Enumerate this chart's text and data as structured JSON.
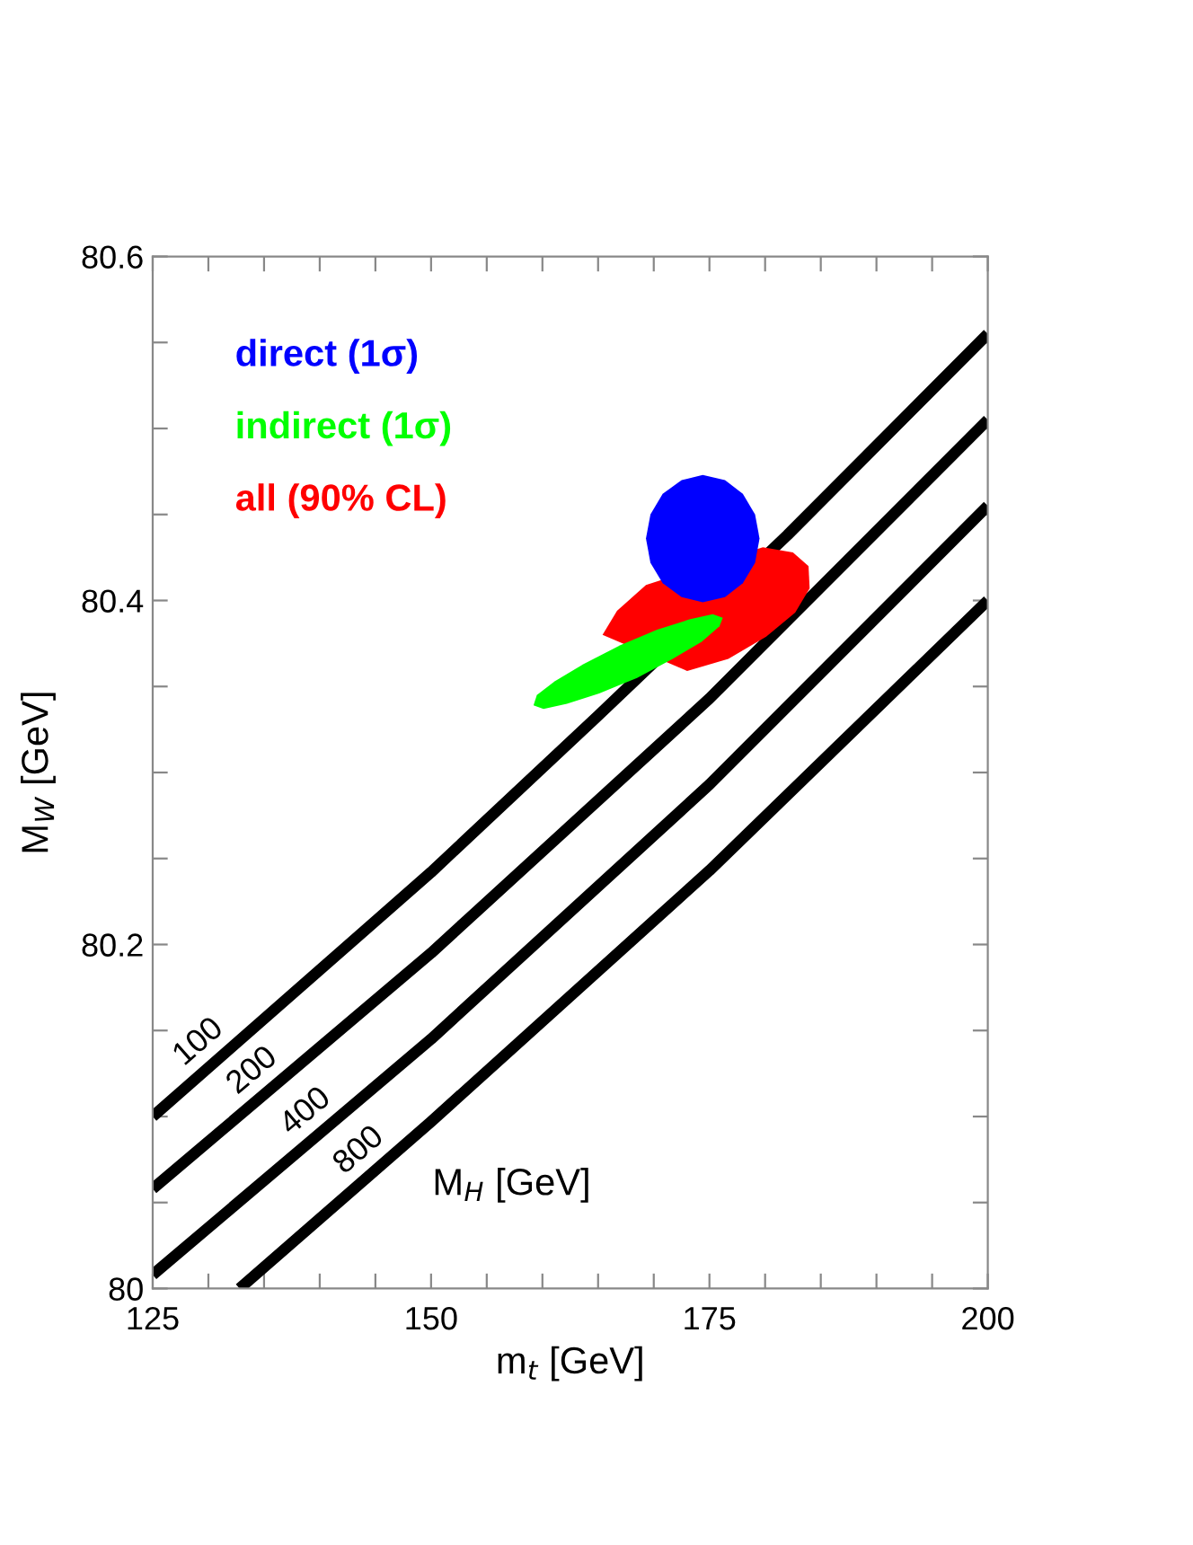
{
  "chart_data": {
    "type": "line",
    "xlabel": "m$_{t}$ [GeV]",
    "ylabel": "M$_{W}$ [GeV]",
    "xlim": [
      125,
      200
    ],
    "ylim": [
      80,
      80.6
    ],
    "xticks": [
      125,
      {
        "value": 130,
        "label": null
      },
      {
        "value": 135,
        "label": null
      },
      {
        "value": 140,
        "label": null
      },
      {
        "value": 145,
        "label": null
      },
      150,
      {
        "value": 155,
        "label": null
      },
      {
        "value": 160,
        "label": null
      },
      {
        "value": 165,
        "label": null
      },
      {
        "value": 170,
        "label": null
      },
      175,
      {
        "value": 180,
        "label": null
      },
      {
        "value": 185,
        "label": null
      },
      {
        "value": 190,
        "label": null
      },
      {
        "value": 195,
        "label": null
      },
      200
    ],
    "yticks": [
      80,
      {
        "value": 80.05,
        "label": null
      },
      {
        "value": 80.1,
        "label": null
      },
      {
        "value": 80.15,
        "label": null
      },
      80.2,
      {
        "value": 80.25,
        "label": null
      },
      {
        "value": 80.3,
        "label": null
      },
      {
        "value": 80.35,
        "label": null
      },
      80.4,
      {
        "value": 80.45,
        "label": null
      },
      {
        "value": 80.5,
        "label": null
      },
      {
        "value": 80.55,
        "label": null
      },
      80.6
    ],
    "grid": false,
    "legend": "top left",
    "marker": "none",
    "line_style": "solid",
    "series": [
      {
        "name": "100",
        "color": "#000000",
        "x": [
          125,
          150,
          165,
          182,
          200
        ],
        "values": [
          80.1,
          80.242,
          80.333,
          80.438,
          80.555
        ]
      },
      {
        "name": "200",
        "color": "#000000",
        "x": [
          125,
          150,
          175,
          200
        ],
        "values": [
          80.058,
          80.195,
          80.343,
          80.505
        ]
      },
      {
        "name": "400",
        "color": "#000000",
        "x": [
          125,
          150,
          175,
          200
        ],
        "values": [
          80.008,
          80.145,
          80.293,
          80.455
        ]
      },
      {
        "name": "800",
        "color": "#000000",
        "x": [
          132.8,
          150,
          175,
          200
        ],
        "values": [
          80.0,
          80.097,
          80.243,
          80.4
        ]
      },
      {
        "type": "area",
        "name": "direct (1σ)",
        "color": "#0000ff",
        "x": [
          179.5,
          179.1,
          178.0,
          176.4,
          174.4,
          172.5,
          170.8,
          169.7,
          169.3,
          169.7,
          170.8,
          172.5,
          174.4,
          176.4,
          178.0,
          179.1
        ],
        "values": [
          80.436,
          80.45,
          80.462,
          80.47,
          80.473,
          80.47,
          80.462,
          80.45,
          80.436,
          80.422,
          80.41,
          80.402,
          80.399,
          80.402,
          80.41,
          80.422
        ]
      },
      {
        "type": "area",
        "name": "indirect (1σ)",
        "color": "#00ff00",
        "x": [
          176.2,
          175.9,
          174.3,
          171.7,
          168.5,
          165.1,
          162.2,
          160.1,
          159.2,
          159.5,
          161.1,
          163.7,
          167.0,
          170.3,
          173.2,
          175.3
        ],
        "values": [
          80.39,
          80.385,
          80.376,
          80.366,
          80.355,
          80.346,
          80.34,
          80.337,
          80.339,
          80.345,
          80.353,
          80.363,
          80.374,
          80.383,
          80.389,
          80.392
        ]
      },
      {
        "type": "area",
        "name": "all (90% CL)",
        "color": "#ff0000",
        "x": [
          183.9,
          184.0,
          182.7,
          180.1,
          176.7,
          173.0,
          null,
          null,
          null,
          165.4,
          166.7,
          169.3,
          null,
          null,
          179.8,
          182.5
        ],
        "values": [
          80.42,
          80.407,
          80.393,
          80.379,
          80.366,
          80.359,
          null,
          null,
          null,
          80.38,
          80.394,
          80.409,
          null,
          null,
          80.431,
          80.428
        ]
      }
    ],
    "annotations": [
      "M$_{H}$ [GeV]"
    ]
  }
}
